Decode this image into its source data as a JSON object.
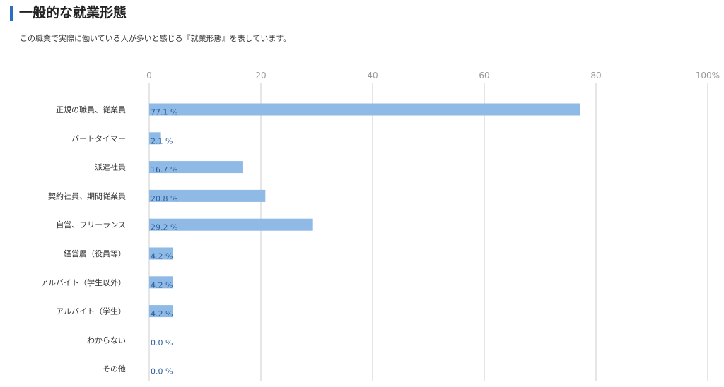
{
  "page": {
    "title": "一般的な就業形態",
    "subtitle": "この職業で実際に働いている人が多いと感じる『就業形態』を表しています。",
    "accent_color": "#2a6fc2"
  },
  "chart_data": {
    "type": "bar",
    "orientation": "horizontal",
    "title": "",
    "xlabel": "",
    "ylabel": "",
    "categories": [
      "正規の職員、従業員",
      "パートタイマー",
      "派遣社員",
      "契約社員、期間従業員",
      "自営、フリーランス",
      "経営層（役員等）",
      "アルバイト（学生以外）",
      "アルバイト（学生）",
      "わからない",
      "その他"
    ],
    "values": [
      77.1,
      2.1,
      16.7,
      20.8,
      29.2,
      4.2,
      4.2,
      4.2,
      0.0,
      0.0
    ],
    "value_labels": [
      "77.1 %",
      "2.1 %",
      "16.7 %",
      "20.8 %",
      "29.2 %",
      "4.2 %",
      "4.2 %",
      "4.2 %",
      "0.0 %",
      "0.0 %"
    ],
    "xlim": [
      0,
      100
    ],
    "x_ticks": [
      0,
      20,
      40,
      60,
      80,
      100
    ],
    "x_tick_labels": [
      "0",
      "20",
      "40",
      "60",
      "80",
      "100%"
    ],
    "x_axis_position": "top",
    "grid": true,
    "legend": "none",
    "bar_color": "#8fbae6",
    "grid_color": "#dddddd",
    "value_label_color": "#2b5d9a"
  }
}
